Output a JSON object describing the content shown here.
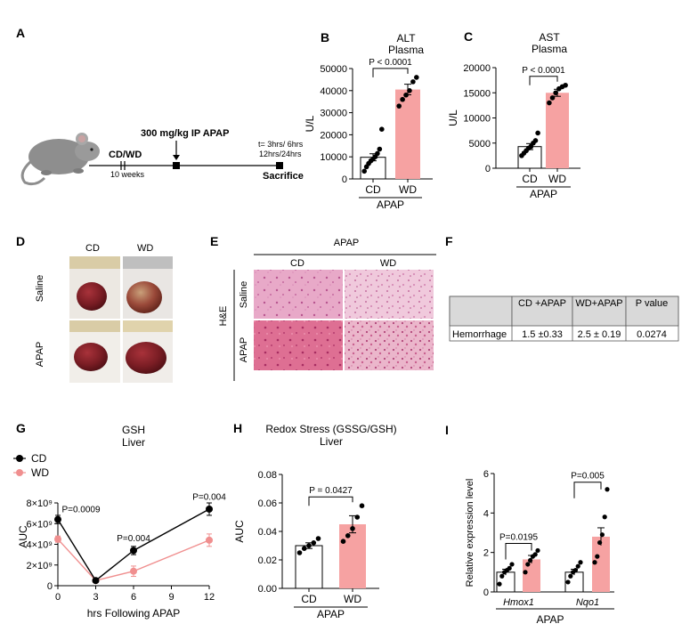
{
  "panels": {
    "A": {
      "letter": "A",
      "diet_label": "CD/WD",
      "duration": "10 weeks",
      "injection": "300 mg/kg IP APAP",
      "times_line1": "t= 3hrs/ 6hrs",
      "times_line2": "12hrs/24hrs",
      "endpoint": "Sacrifice"
    },
    "D": {
      "letter": "D",
      "col_labels": [
        "CD",
        "WD"
      ],
      "row_labels": [
        "Saline",
        "APAP"
      ]
    },
    "E": {
      "letter": "E",
      "top_label": "APAP",
      "col_labels": [
        "CD",
        "WD"
      ],
      "stain_label": "H&E",
      "row_labels": [
        "Saline",
        "APAP"
      ]
    },
    "F": {
      "letter": "F",
      "headers": [
        "",
        "CD +APAP",
        "WD+APAP",
        "P value"
      ],
      "row": [
        "Hemorrhage",
        "1.5 ±0.33",
        "2.5 ± 0.19",
        "0.0274"
      ]
    }
  },
  "chart_data": [
    {
      "id": "B",
      "letter": "B",
      "type": "bar",
      "title": "ALT",
      "subtitle": "Plasma",
      "ylabel": "U/L",
      "categories": [
        "CD",
        "WD"
      ],
      "group_label": "APAP",
      "values": [
        9800,
        40500
      ],
      "errors": [
        1600,
        2400
      ],
      "points": [
        [
          3500,
          5500,
          7000,
          8200,
          9000,
          10000,
          11500,
          13500,
          22500
        ],
        [
          33000,
          36000,
          38000,
          40000,
          44000,
          46000
        ]
      ],
      "ylim": [
        0,
        50000
      ],
      "yticks": [
        "0",
        "10000",
        "20000",
        "30000",
        "40000",
        "50000"
      ],
      "annotation": "P < 0.0001",
      "colors": [
        "#ffffff",
        "#f6a2a2"
      ]
    },
    {
      "id": "C",
      "letter": "C",
      "type": "bar",
      "title": "AST",
      "subtitle": "Plasma",
      "ylabel": "U/L",
      "categories": [
        "CD",
        "WD"
      ],
      "group_label": "APAP",
      "values": [
        4300,
        15000
      ],
      "errors": [
        600,
        700
      ],
      "points": [
        [
          2500,
          3000,
          3500,
          4000,
          4300,
          5000,
          5500,
          7000
        ],
        [
          13000,
          14000,
          15000,
          15800,
          16200,
          16500
        ]
      ],
      "ylim": [
        0,
        20000
      ],
      "yticks": [
        "0",
        "5000",
        "10000",
        "15000",
        "20000"
      ],
      "annotation": "P < 0.0001",
      "colors": [
        "#ffffff",
        "#f6a2a2"
      ]
    },
    {
      "id": "G",
      "letter": "G",
      "type": "line",
      "title": "GSH",
      "subtitle": "Liver",
      "xlabel": "hrs Following APAP",
      "ylabel": "AUC",
      "x": [
        0,
        3,
        6,
        12
      ],
      "xticks": [
        "0",
        "3",
        "6",
        "9",
        "12"
      ],
      "xlim": [
        0,
        12
      ],
      "ylim": [
        0,
        8
      ],
      "yticks": [
        "0",
        "2×10⁹",
        "4×10⁹",
        "6×10⁹",
        "8×10⁹"
      ],
      "series": [
        {
          "name": "CD",
          "values": [
            6.4,
            0.5,
            3.4,
            7.4
          ],
          "errors": [
            0.4,
            0.1,
            0.4,
            0.6
          ],
          "color": "#000000"
        },
        {
          "name": "WD",
          "values": [
            4.5,
            0.5,
            1.4,
            4.4
          ],
          "errors": [
            0.3,
            0.1,
            0.5,
            0.6
          ],
          "color": "#f08f8f"
        }
      ],
      "annotations": [
        {
          "text": "P=0.0009",
          "x": 0,
          "y": 7.1
        },
        {
          "text": "P=0.004",
          "x": 6,
          "y": 4.3
        },
        {
          "text": "P=0.004",
          "x": 12,
          "y": 8.3
        }
      ]
    },
    {
      "id": "H",
      "letter": "H",
      "type": "bar",
      "title": "Redox Stress (GSSG/GSH)",
      "subtitle": "Liver",
      "ylabel": "AUC",
      "categories": [
        "CD",
        "WD"
      ],
      "group_label": "APAP",
      "values": [
        0.03,
        0.045
      ],
      "errors": [
        0.002,
        0.006
      ],
      "points": [
        [
          0.025,
          0.028,
          0.03,
          0.032,
          0.035
        ],
        [
          0.033,
          0.037,
          0.042,
          0.05,
          0.058
        ]
      ],
      "ylim": [
        0,
        0.08
      ],
      "yticks": [
        "0.00",
        "0.02",
        "0.04",
        "0.06",
        "0.08"
      ],
      "annotation": "P = 0.0427",
      "colors": [
        "#ffffff",
        "#f6a2a2"
      ]
    },
    {
      "id": "I",
      "letter": "I",
      "type": "bar",
      "title": "",
      "ylabel": "Relative expression level",
      "genes": [
        "Hmox1",
        "Nqo1"
      ],
      "group_label": "APAP",
      "values": [
        [
          1.0,
          1.65
        ],
        [
          1.0,
          2.8
        ]
      ],
      "errors": [
        [
          0.15,
          0.2
        ],
        [
          0.15,
          0.45
        ]
      ],
      "points": [
        [
          [
            0.4,
            0.8,
            1.0,
            1.1,
            1.2,
            1.4
          ],
          [
            1.0,
            1.4,
            1.6,
            1.8,
            1.9,
            2.1
          ]
        ],
        [
          [
            0.5,
            0.8,
            1.0,
            1.1,
            1.3,
            1.5
          ],
          [
            1.5,
            1.8,
            2.5,
            2.9,
            3.8,
            5.2
          ]
        ]
      ],
      "ylim": [
        0,
        6
      ],
      "yticks": [
        "0",
        "2",
        "4",
        "6"
      ],
      "annotations": [
        "P=0.0195",
        "P=0.005"
      ],
      "colors": [
        "#ffffff",
        "#f6a2a2"
      ]
    }
  ]
}
